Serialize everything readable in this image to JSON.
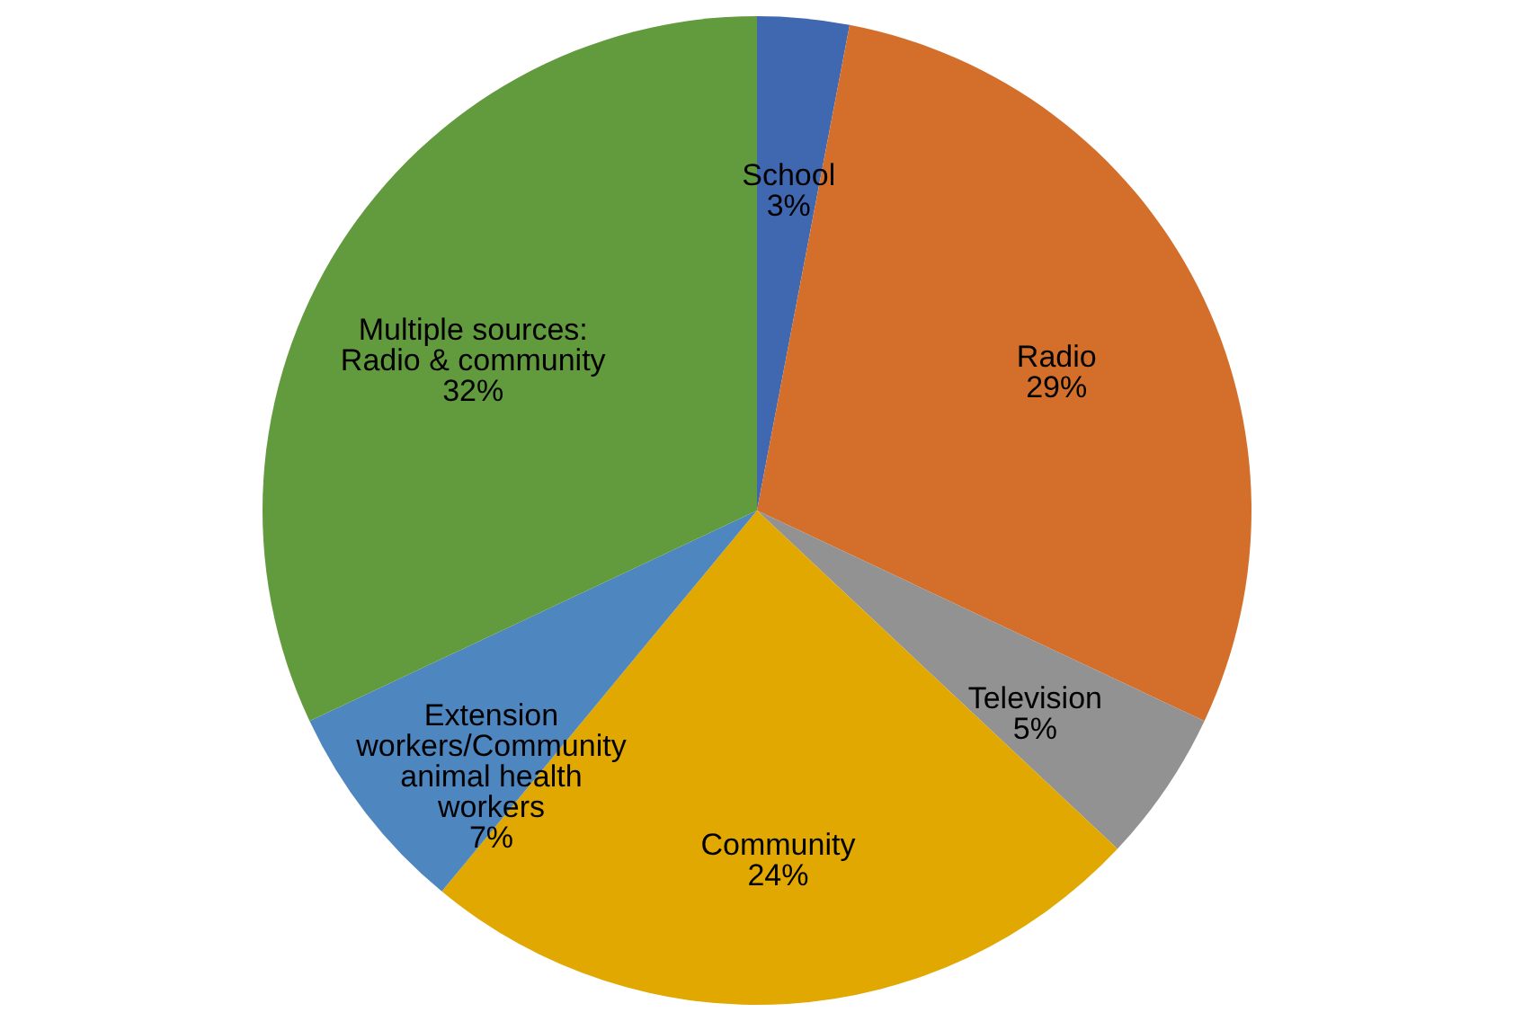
{
  "chart_data": {
    "type": "pie",
    "categories": [
      "School",
      "Radio",
      "Television",
      "Community",
      "Extension workers/Community animal health workers",
      "Multiple sources: Radio  & community"
    ],
    "values": [
      3,
      29,
      5,
      24,
      7,
      32
    ],
    "colors": [
      "#4068b0",
      "#d36f2b",
      "#929292",
      "#e0a800",
      "#4e86c0",
      "#629a3e"
    ],
    "value_labels": [
      "3%",
      "29%",
      "5%",
      "24%",
      "7%",
      "32%"
    ]
  }
}
